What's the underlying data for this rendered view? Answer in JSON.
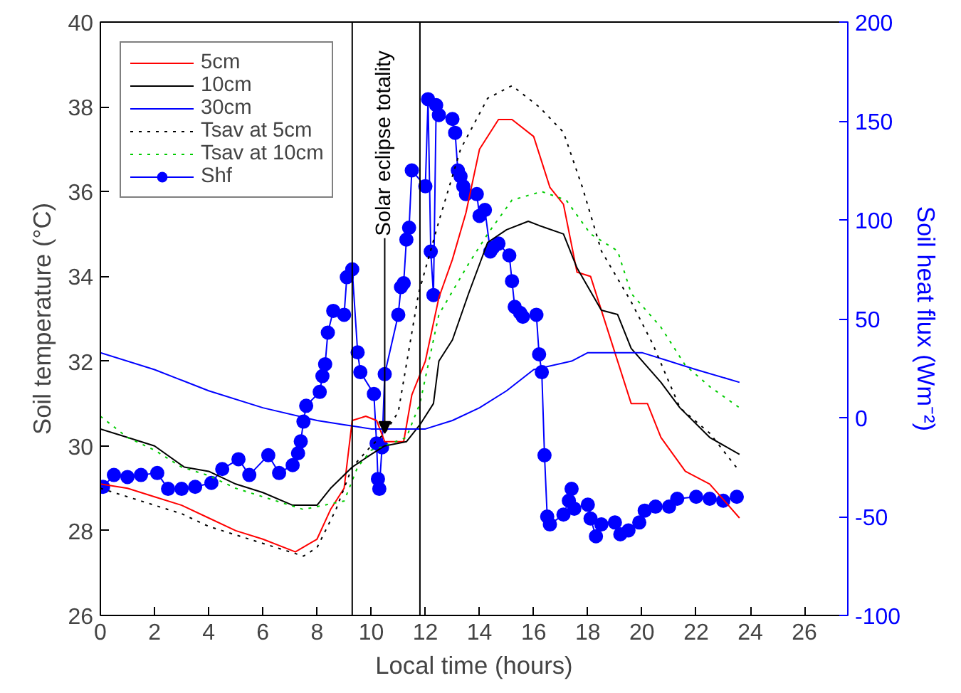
{
  "chart_data": {
    "type": "line",
    "xlabel": "Local time (hours)",
    "ylabel": "Soil temperature (°C)",
    "y2label": "Soil heat flux (Wm⁻²)",
    "xlim": [
      0,
      27.6
    ],
    "xticks": [
      0,
      2,
      4,
      6,
      8,
      10,
      12,
      14,
      16,
      18,
      20,
      22,
      24,
      26
    ],
    "ylim": [
      26,
      40
    ],
    "yticks": [
      26,
      28,
      30,
      32,
      34,
      36,
      38,
      40
    ],
    "y2lim": [
      -100,
      200
    ],
    "y2ticks": [
      -100,
      -50,
      0,
      50,
      100,
      150,
      200
    ],
    "grid": false,
    "legend": "top left",
    "ref_lines": [
      {
        "axis": "x",
        "value": 9.3,
        "color": "#000000"
      },
      {
        "axis": "x",
        "value": 11.8,
        "color": "#000000"
      }
    ],
    "annotations": [
      {
        "text": "Solar eclipse totality",
        "x": 10.5,
        "y": 30.3
      }
    ],
    "series": [
      {
        "name": "5cm",
        "color": "#ff0000",
        "line_style": "solid",
        "marker": "none",
        "x": [
          0,
          1,
          2,
          3,
          4,
          5,
          6,
          7.2,
          8,
          8.5,
          9,
          9.3,
          9.8,
          10.2,
          10.5,
          11.2,
          11.5,
          12,
          12.5,
          13,
          13.5,
          14,
          14.7,
          15.2,
          16,
          16.6,
          17.1,
          17.6,
          18.1,
          19.1,
          19.6,
          20.2,
          20.7,
          21.6,
          22.5,
          23.6
        ],
        "values": [
          29.1,
          29.0,
          28.8,
          28.6,
          28.3,
          28.0,
          27.8,
          27.5,
          27.8,
          28.5,
          29.0,
          30.6,
          30.7,
          30.6,
          30.1,
          30.1,
          31.2,
          32.0,
          33.5,
          34.4,
          35.5,
          37.0,
          37.7,
          37.7,
          37.3,
          36.1,
          35.7,
          34.1,
          34.0,
          32.0,
          31.0,
          31.0,
          30.2,
          29.4,
          29.1,
          28.3
        ]
      },
      {
        "name": "10cm",
        "color": "#000000",
        "line_style": "solid",
        "marker": "none",
        "x": [
          0,
          1,
          2,
          3.1,
          4,
          5,
          6,
          7.1,
          8,
          8.5,
          9.3,
          10,
          10.5,
          11.3,
          11.8,
          12.3,
          12.5,
          13,
          13.6,
          14.3,
          15,
          15.8,
          16.2,
          17.1,
          17.6,
          18.5,
          19.1,
          19.6,
          20.7,
          21.4,
          22.5,
          23.6
        ],
        "values": [
          30.4,
          30.2,
          30.0,
          29.5,
          29.4,
          29.1,
          28.9,
          28.6,
          28.6,
          29.0,
          29.5,
          29.8,
          30.0,
          30.1,
          30.5,
          31.0,
          32.0,
          32.5,
          33.6,
          34.8,
          35.1,
          35.3,
          35.2,
          35.0,
          34.2,
          33.2,
          33.1,
          32.3,
          31.5,
          30.9,
          30.2,
          29.8
        ]
      },
      {
        "name": "30cm",
        "color": "#0000ff",
        "line_style": "solid",
        "marker": "none",
        "x": [
          0,
          2,
          4,
          6,
          8,
          9,
          10,
          12,
          13,
          14,
          15,
          16,
          17.4,
          18,
          19,
          20,
          21,
          22,
          23.6
        ],
        "values": [
          32.2,
          31.8,
          31.3,
          30.9,
          30.6,
          30.5,
          30.4,
          30.4,
          30.6,
          30.9,
          31.3,
          31.8,
          32.0,
          32.2,
          32.2,
          32.2,
          32.0,
          31.8,
          31.5
        ]
      },
      {
        "name": "Tsav at 5cm",
        "color": "#000000",
        "line_style": "dotted",
        "marker": "none",
        "x": [
          0,
          1,
          2,
          3,
          4,
          5,
          6,
          7.5,
          8,
          8.7,
          9.3,
          10,
          10.5,
          11,
          11.75,
          12.5,
          13.3,
          14.3,
          15.2,
          16.2,
          17.1,
          17.8,
          18.5,
          19.6,
          20.4,
          21.4,
          22.5,
          23.6
        ],
        "values": [
          29.0,
          28.8,
          28.6,
          28.4,
          28.1,
          27.9,
          27.7,
          27.4,
          27.6,
          28.5,
          29.5,
          30.0,
          30.3,
          30.8,
          33.6,
          35.3,
          37.0,
          38.2,
          38.5,
          38.0,
          37.4,
          36.1,
          34.6,
          33.4,
          32.4,
          30.9,
          30.3,
          29.4
        ]
      },
      {
        "name": "Tsav at 10cm",
        "color": "#00cc00",
        "line_style": "dotted",
        "marker": "none",
        "x": [
          0,
          1,
          2,
          3,
          4,
          5,
          6,
          7.5,
          9,
          9.5,
          10,
          10.5,
          11.3,
          11.8,
          12.5,
          13.6,
          14.3,
          15.2,
          16.3,
          17.2,
          18.1,
          19.1,
          19.6,
          20.7,
          21.6,
          22.5,
          23.6
        ],
        "values": [
          30.7,
          30.2,
          29.9,
          29.5,
          29.3,
          29.0,
          28.8,
          28.5,
          28.7,
          29.5,
          29.9,
          30.0,
          30.2,
          31.0,
          33.1,
          34.3,
          35.0,
          35.8,
          36.0,
          35.8,
          35.0,
          34.6,
          33.6,
          32.8,
          31.9,
          31.4,
          30.9
        ]
      },
      {
        "name": "Shf",
        "color": "#0000ff",
        "line_style": "solid",
        "marker": "circle",
        "axis": "y2",
        "x": [
          0.1,
          0.5,
          1.0,
          1.5,
          2.1,
          2.5,
          3.0,
          3.5,
          4.1,
          4.5,
          5.1,
          5.5,
          6.2,
          6.6,
          7.1,
          7.3,
          7.4,
          7.5,
          7.6,
          8.1,
          8.2,
          8.3,
          8.4,
          8.6,
          9.0,
          9.1,
          9.3,
          9.5,
          9.6,
          10.1,
          10.2,
          10.25,
          10.3,
          10.4,
          10.5,
          11.0,
          11.1,
          11.2,
          11.3,
          11.4,
          11.5,
          12.0,
          12.1,
          12.2,
          12.3,
          12.4,
          12.5,
          13.0,
          13.1,
          13.2,
          13.3,
          13.4,
          13.5,
          13.9,
          14.0,
          14.2,
          14.4,
          14.5,
          14.7,
          15.1,
          15.2,
          15.3,
          15.5,
          15.6,
          16.1,
          16.2,
          16.3,
          16.4,
          16.5,
          16.6,
          17.1,
          17.3,
          17.4,
          17.5,
          18.0,
          18.1,
          18.3,
          18.5,
          19.0,
          19.2,
          19.5,
          19.9,
          20.1,
          20.5,
          21.0,
          21.3,
          22.0,
          22.5,
          23.0,
          23.5
        ],
        "values": [
          -35,
          -29,
          -30,
          -29,
          -28,
          -36,
          -36,
          -35,
          -33,
          -26,
          -21,
          -29,
          -19,
          -28,
          -24,
          -18,
          -12,
          -2,
          6,
          13,
          21,
          27,
          43,
          54,
          52,
          71,
          75,
          33,
          23,
          12,
          -13,
          -31,
          -36,
          -15,
          22,
          52,
          66,
          68,
          90,
          96,
          125,
          117,
          161,
          84,
          62,
          158,
          153,
          151,
          144,
          125,
          122,
          117,
          113,
          113,
          102,
          105,
          84,
          86,
          88,
          82,
          69,
          56,
          53,
          51,
          52,
          32,
          23,
          -19,
          -50,
          -54,
          -49,
          -42,
          -36,
          -46,
          -44,
          -51,
          -60,
          -54,
          -53,
          -59,
          -57,
          -53,
          -47,
          -45,
          -45,
          -41,
          -40,
          -41,
          -42,
          -40
        ]
      }
    ]
  }
}
